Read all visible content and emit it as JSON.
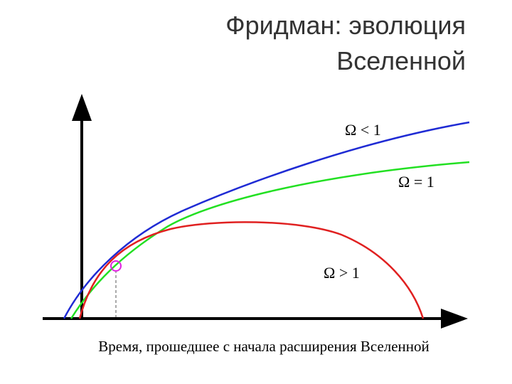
{
  "title": [
    "Фридман: эволюция",
    "Вселенной"
  ],
  "curves": {
    "open": "Ω < 1",
    "flat": "Ω = 1",
    "closed": "Ω > 1"
  },
  "x_axis_label": "Время, прошедшее с начала расширения Вселенной"
}
